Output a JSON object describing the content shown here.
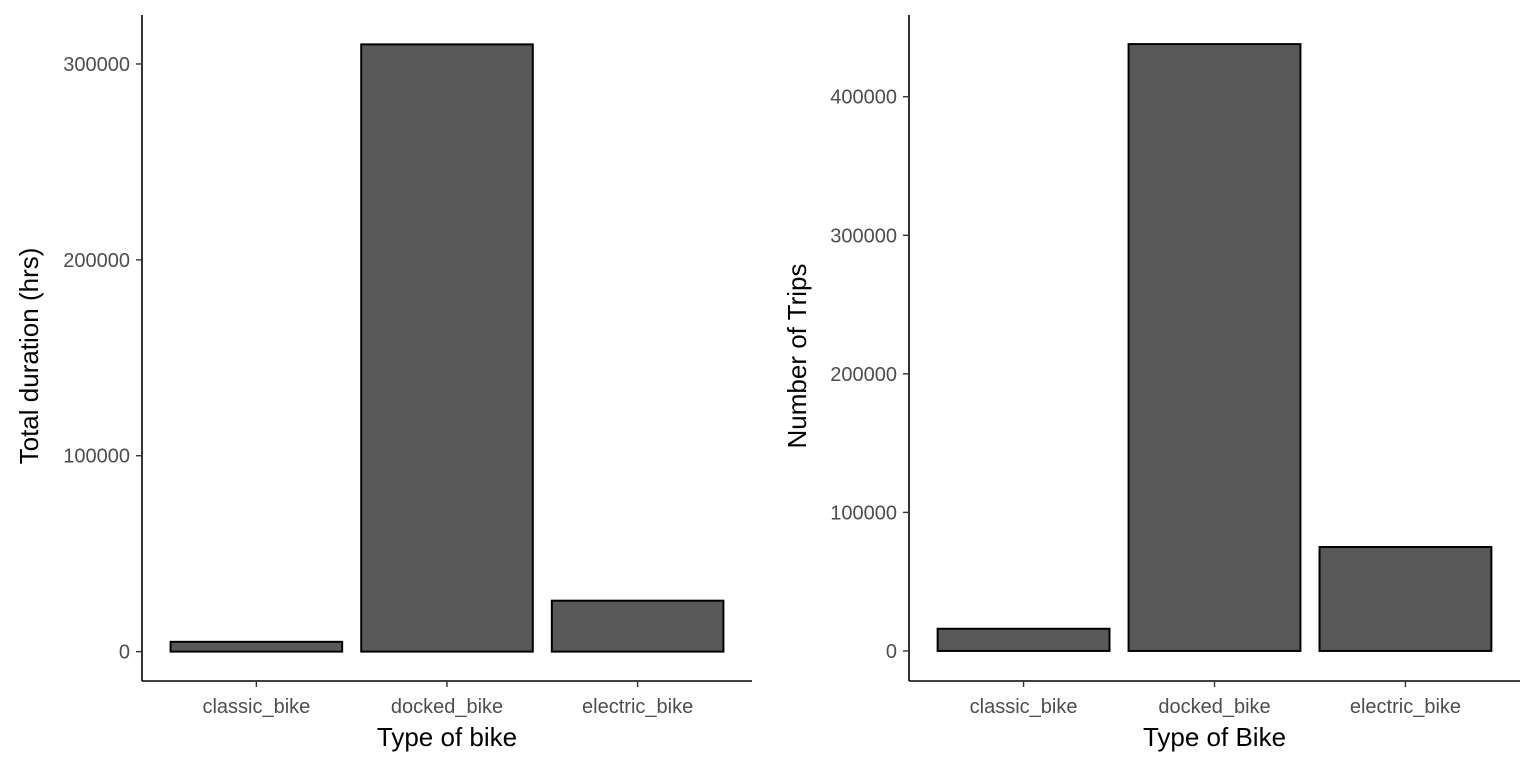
{
  "chart_data": [
    {
      "type": "bar",
      "categories": [
        "classic_bike",
        "docked_bike",
        "electric_bike"
      ],
      "values": [
        5000,
        310000,
        26000
      ],
      "xlabel": "Type of bike",
      "ylabel": "Total duration (hrs)",
      "yticks": [
        0,
        100000,
        200000,
        300000
      ],
      "ytick_labels": [
        "0",
        "100000",
        "200000",
        "300000"
      ],
      "ylim": [
        -15000,
        325000
      ],
      "grid": false,
      "bar_color": "#595959"
    },
    {
      "type": "bar",
      "categories": [
        "classic_bike",
        "docked_bike",
        "electric_bike"
      ],
      "values": [
        16000,
        438000,
        75000
      ],
      "xlabel": "Type of Bike",
      "ylabel": "Number of Trips",
      "yticks": [
        0,
        100000,
        200000,
        300000,
        400000
      ],
      "ytick_labels": [
        "0",
        "100000",
        "200000",
        "300000",
        "400000"
      ],
      "ylim": [
        -21700,
        459000
      ],
      "grid": false,
      "bar_color": "#595959"
    }
  ]
}
